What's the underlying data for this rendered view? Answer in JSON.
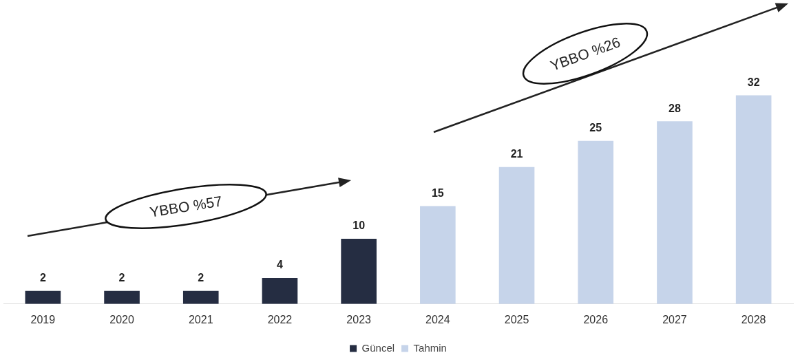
{
  "chart_data": {
    "type": "bar",
    "categories": [
      "2019",
      "2020",
      "2021",
      "2022",
      "2023",
      "2024",
      "2025",
      "2026",
      "2027",
      "2028"
    ],
    "series": [
      {
        "name": "Güncel",
        "color": "#252d42",
        "values": [
          2,
          2,
          2,
          4,
          10,
          null,
          null,
          null,
          null,
          null
        ]
      },
      {
        "name": "Tahmin",
        "color": "#c6d4ea",
        "values": [
          null,
          null,
          null,
          null,
          null,
          15,
          21,
          25,
          28,
          32
        ]
      }
    ],
    "data_labels": true,
    "tick_labels": "x",
    "legend": "bottom",
    "grid": false,
    "annotations": [
      "YBBO %57",
      "YBBO %26"
    ]
  }
}
